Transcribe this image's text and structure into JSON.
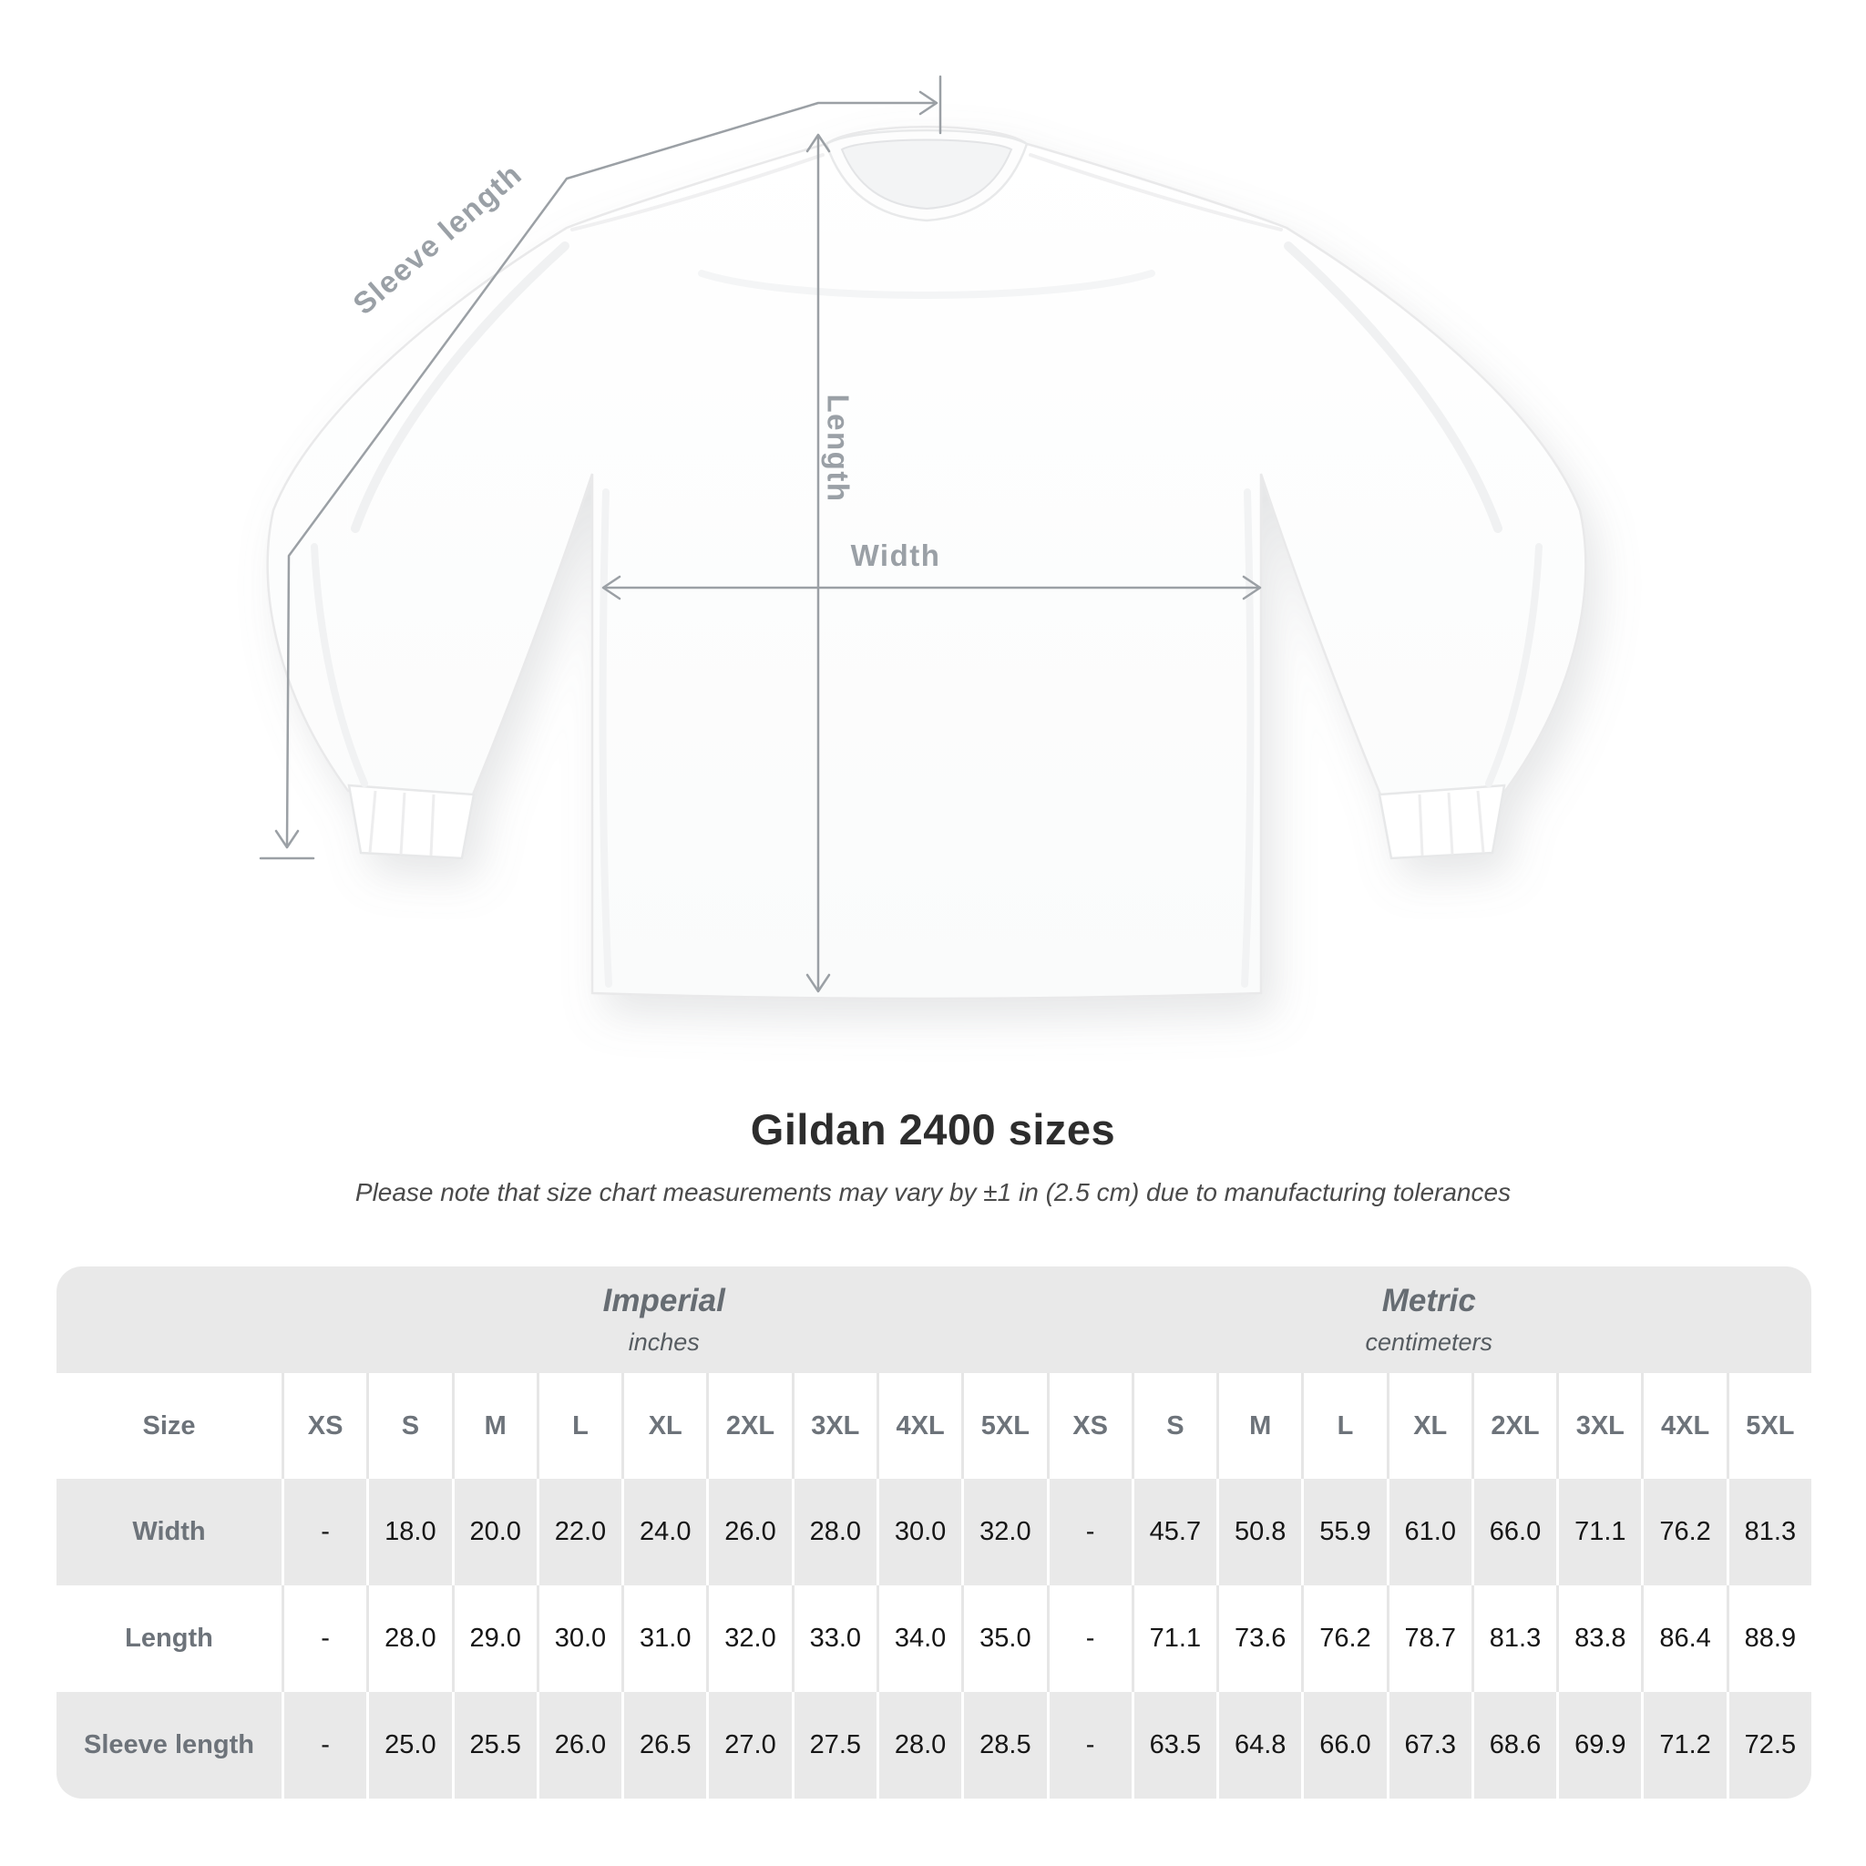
{
  "diagram": {
    "labels": {
      "sleeve_length": "Sleeve length",
      "length": "Length",
      "width": "Width"
    },
    "line_color": "#9ba0a5",
    "label_color": "#9aa0a6"
  },
  "heading": {
    "title": "Gildan 2400 sizes",
    "subtitle": "Please note that size chart measurements may vary by ±1 in (2.5 cm) due to manufacturing tolerances"
  },
  "table": {
    "group_headers": [
      {
        "label": "Imperial",
        "sublabel": "inches"
      },
      {
        "label": "Metric",
        "sublabel": "centimeters"
      }
    ],
    "size_label": "Size",
    "sizes": [
      "XS",
      "S",
      "M",
      "L",
      "XL",
      "2XL",
      "3XL",
      "4XL",
      "5XL"
    ],
    "rows": [
      {
        "label": "Width",
        "imperial": [
          "-",
          "18.0",
          "20.0",
          "22.0",
          "24.0",
          "26.0",
          "28.0",
          "30.0",
          "32.0"
        ],
        "metric": [
          "-",
          "45.7",
          "50.8",
          "55.9",
          "61.0",
          "66.0",
          "71.1",
          "76.2",
          "81.3"
        ]
      },
      {
        "label": "Length",
        "imperial": [
          "-",
          "28.0",
          "29.0",
          "30.0",
          "31.0",
          "32.0",
          "33.0",
          "34.0",
          "35.0"
        ],
        "metric": [
          "-",
          "71.1",
          "73.6",
          "76.2",
          "78.7",
          "81.3",
          "83.8",
          "86.4",
          "88.9"
        ]
      },
      {
        "label": "Sleeve length",
        "imperial": [
          "-",
          "25.0",
          "25.5",
          "26.0",
          "26.5",
          "27.0",
          "27.5",
          "28.0",
          "28.5"
        ],
        "metric": [
          "-",
          "63.5",
          "64.8",
          "66.0",
          "67.3",
          "68.6",
          "69.9",
          "71.2",
          "72.5"
        ]
      }
    ],
    "colors": {
      "band_bg": "#e9e9e9",
      "alt_row_bg": "#e9e9e9",
      "header_text": "#6d737a",
      "value_text": "#161616",
      "separator_on_white": "#e6e6e6",
      "separator_on_gray": "#ffffff"
    }
  }
}
